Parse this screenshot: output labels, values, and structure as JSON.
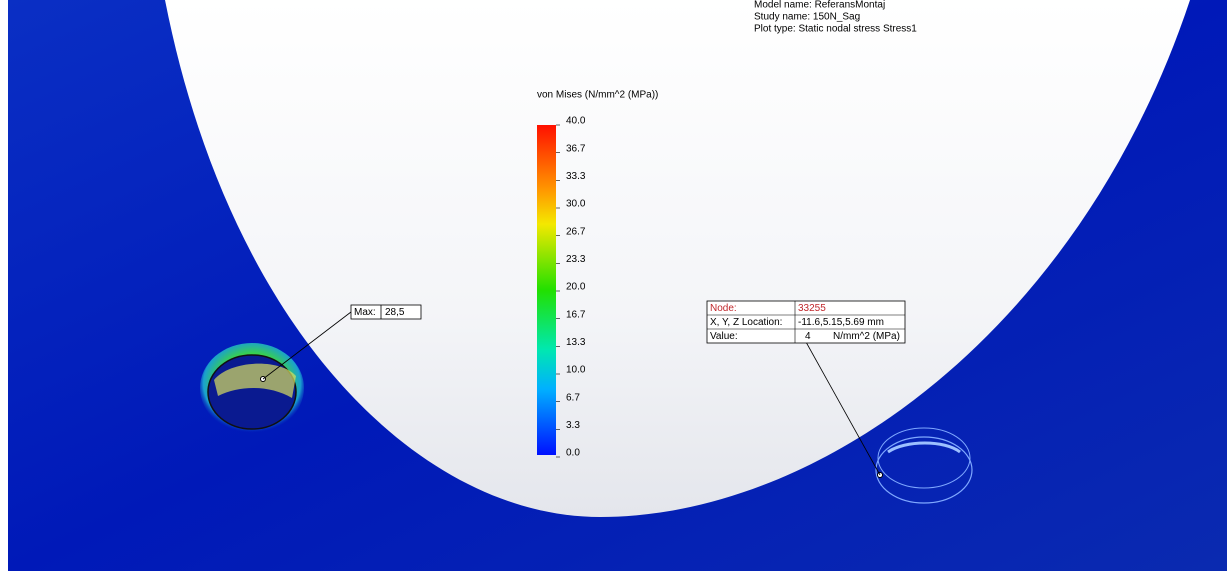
{
  "header": {
    "lines": [
      "Model name: ReferansMontaj",
      "Study name: 150N_Sag",
      "Plot type: Static nodal stress Stress1"
    ]
  },
  "legend": {
    "title": "von Mises (N/mm^2 (MPa))",
    "ticks": [
      "40.0",
      "36.7",
      "33.3",
      "30.0",
      "26.7",
      "23.3",
      "20.0",
      "16.7",
      "13.3",
      "10.0",
      "6.7",
      "3.3",
      "0.0"
    ]
  },
  "max_label": {
    "key": "Max:",
    "value": "28,5"
  },
  "probe": {
    "node_key": "Node:",
    "node": "33255",
    "location_key": "X, Y, Z Location:",
    "location": "-11.6,5.15,5.69 mm",
    "value_key": "Value:",
    "value": "4",
    "unit": "N/mm^2 (MPa)"
  }
}
